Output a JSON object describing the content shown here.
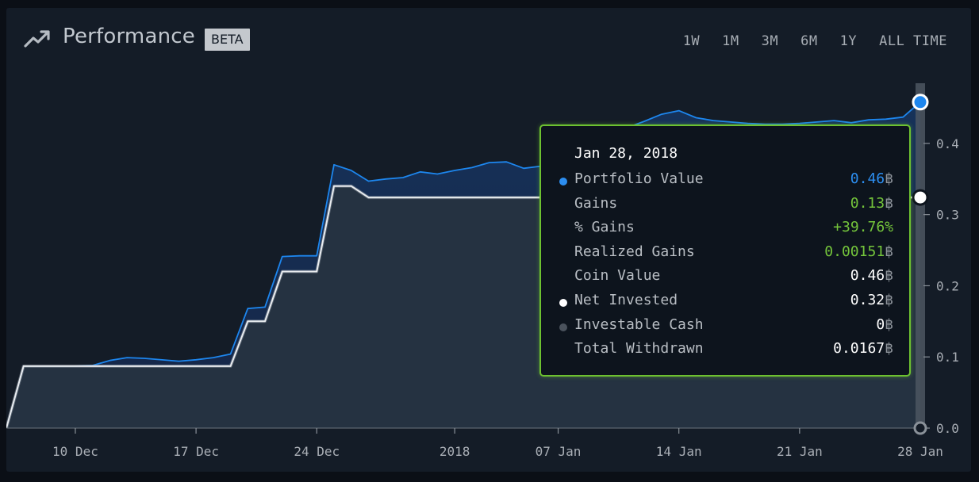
{
  "header": {
    "title": "Performance",
    "badge": "BETA",
    "ranges": [
      "1W",
      "1M",
      "3M",
      "6M",
      "1Y",
      "ALL TIME"
    ]
  },
  "tooltip": {
    "date": "Jan 28, 2018",
    "unit": "฿",
    "rows": [
      {
        "label": "Portfolio Value",
        "value": "0.46",
        "unit": "฿",
        "dot": "#2c8ef0",
        "color": "#2c8ef0"
      },
      {
        "label": "Gains",
        "value": "0.13",
        "unit": "฿",
        "dot": "",
        "color": "#74c53b"
      },
      {
        "label": "% Gains",
        "value": "+39.76%",
        "unit": "",
        "dot": "",
        "color": "#74c53b"
      },
      {
        "label": "Realized Gains",
        "value": "0.00151",
        "unit": "฿",
        "dot": "",
        "color": "#74c53b"
      },
      {
        "label": "Coin Value",
        "value": "0.46",
        "unit": "฿",
        "dot": "",
        "color": "#ffffff"
      },
      {
        "label": "Net Invested",
        "value": "0.32",
        "unit": "฿",
        "dot": "#ffffff",
        "color": "#ffffff"
      },
      {
        "label": "Investable Cash",
        "value": "0",
        "unit": "฿",
        "dot": "#4a525c",
        "color": "#ffffff"
      },
      {
        "label": "Total Withdrawn",
        "value": "0.0167",
        "unit": "฿",
        "dot": "",
        "color": "#ffffff"
      }
    ]
  },
  "colors": {
    "portfolio": "#1d86ee",
    "net_invested": "#e9ecef",
    "tooltip_border": "#6dc130",
    "gain_green": "#74c53b",
    "background": "#141c27"
  },
  "chart_data": {
    "type": "area",
    "x_tick_labels": [
      "10 Dec",
      "17 Dec",
      "24 Dec",
      "2018",
      "07 Jan",
      "14 Jan",
      "21 Jan",
      "28 Jan"
    ],
    "y_tick_labels": [
      "0.0",
      "0.1",
      "0.2",
      "0.3",
      "0.4"
    ],
    "ylim": [
      0,
      0.46
    ],
    "x_range": [
      "2017-12-06",
      "2018-01-28"
    ],
    "series": [
      {
        "name": "Portfolio Value",
        "points": [
          [
            "2017-12-06",
            0.0
          ],
          [
            "2017-12-07",
            0.087
          ],
          [
            "2017-12-08",
            0.087
          ],
          [
            "2017-12-10",
            0.087
          ],
          [
            "2017-12-11",
            0.088
          ],
          [
            "2017-12-12",
            0.095
          ],
          [
            "2017-12-13",
            0.099
          ],
          [
            "2017-12-14",
            0.098
          ],
          [
            "2017-12-16",
            0.094
          ],
          [
            "2017-12-17",
            0.096
          ],
          [
            "2017-12-18",
            0.099
          ],
          [
            "2017-12-19",
            0.104
          ],
          [
            "2017-12-20",
            0.168
          ],
          [
            "2017-12-21",
            0.17
          ],
          [
            "2017-12-22",
            0.241
          ],
          [
            "2017-12-23",
            0.242
          ],
          [
            "2017-12-24",
            0.242
          ],
          [
            "2017-12-25",
            0.37
          ],
          [
            "2017-12-26",
            0.362
          ],
          [
            "2017-12-27",
            0.347
          ],
          [
            "2017-12-28",
            0.35
          ],
          [
            "2017-12-29",
            0.352
          ],
          [
            "2017-12-30",
            0.36
          ],
          [
            "2017-12-31",
            0.357
          ],
          [
            "2018-01-01",
            0.362
          ],
          [
            "2018-01-02",
            0.366
          ],
          [
            "2018-01-03",
            0.373
          ],
          [
            "2018-01-04",
            0.374
          ],
          [
            "2018-01-05",
            0.365
          ],
          [
            "2018-01-06",
            0.368
          ],
          [
            "2018-01-07",
            0.372
          ],
          [
            "2018-01-08",
            0.4
          ],
          [
            "2018-01-09",
            0.425
          ],
          [
            "2018-01-10",
            0.419
          ],
          [
            "2018-01-11",
            0.422
          ],
          [
            "2018-01-12",
            0.431
          ],
          [
            "2018-01-13",
            0.441
          ],
          [
            "2018-01-14",
            0.446
          ],
          [
            "2018-01-15",
            0.436
          ],
          [
            "2018-01-16",
            0.432
          ],
          [
            "2018-01-17",
            0.43
          ],
          [
            "2018-01-18",
            0.428
          ],
          [
            "2018-01-19",
            0.427
          ],
          [
            "2018-01-20",
            0.427
          ],
          [
            "2018-01-21",
            0.428
          ],
          [
            "2018-01-22",
            0.43
          ],
          [
            "2018-01-23",
            0.432
          ],
          [
            "2018-01-24",
            0.429
          ],
          [
            "2018-01-25",
            0.433
          ],
          [
            "2018-01-26",
            0.434
          ],
          [
            "2018-01-27",
            0.437
          ],
          [
            "2018-01-28",
            0.458
          ]
        ]
      },
      {
        "name": "Net Invested",
        "points": [
          [
            "2017-12-06",
            0.0
          ],
          [
            "2017-12-07",
            0.087
          ],
          [
            "2017-12-19",
            0.087
          ],
          [
            "2017-12-20",
            0.15
          ],
          [
            "2017-12-21",
            0.15
          ],
          [
            "2017-12-22",
            0.22
          ],
          [
            "2017-12-24",
            0.22
          ],
          [
            "2017-12-25",
            0.34
          ],
          [
            "2017-12-26",
            0.34
          ],
          [
            "2017-12-27",
            0.324
          ],
          [
            "2018-01-28",
            0.324
          ]
        ]
      }
    ],
    "grid": false
  }
}
